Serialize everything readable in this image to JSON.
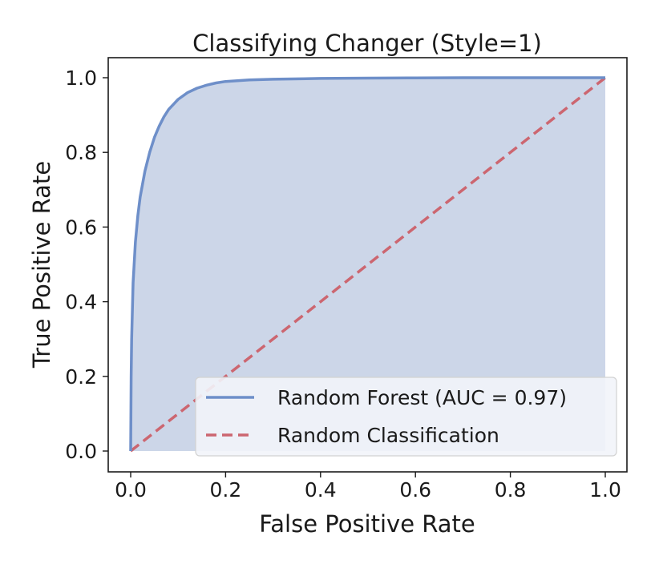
{
  "chart_data": {
    "type": "line",
    "title": "Classifying Changer (Style=1)",
    "xlabel": "False Positive Rate",
    "ylabel": "True Positive Rate",
    "xlim": [
      0.0,
      1.0
    ],
    "ylim": [
      0.0,
      1.0
    ],
    "x_ticks": [
      "0.0",
      "0.2",
      "0.4",
      "0.6",
      "0.8",
      "1.0"
    ],
    "y_ticks": [
      "0.0",
      "0.2",
      "0.4",
      "0.6",
      "0.8",
      "1.0"
    ],
    "grid": false,
    "legend_position": "lower-right",
    "series": [
      {
        "name": "Random Forest (AUC = 0.97)",
        "style": "solid",
        "color": "#6e8fc9",
        "fill": "#c9d4e7",
        "x": [
          0.0,
          0.001,
          0.002,
          0.005,
          0.01,
          0.015,
          0.02,
          0.03,
          0.04,
          0.05,
          0.06,
          0.07,
          0.08,
          0.1,
          0.12,
          0.14,
          0.16,
          0.18,
          0.2,
          0.25,
          0.3,
          0.4,
          0.5,
          0.6,
          0.7,
          0.8,
          0.9,
          1.0
        ],
        "y": [
          0.0,
          0.2,
          0.3,
          0.45,
          0.56,
          0.63,
          0.68,
          0.75,
          0.8,
          0.84,
          0.87,
          0.895,
          0.915,
          0.942,
          0.96,
          0.972,
          0.98,
          0.986,
          0.99,
          0.994,
          0.996,
          0.998,
          0.999,
          0.9995,
          1.0,
          1.0,
          1.0,
          1.0
        ]
      },
      {
        "name": "Random Classification",
        "style": "dashed",
        "color": "#cc6670",
        "x": [
          0.0,
          1.0
        ],
        "y": [
          0.0,
          1.0
        ]
      }
    ]
  }
}
